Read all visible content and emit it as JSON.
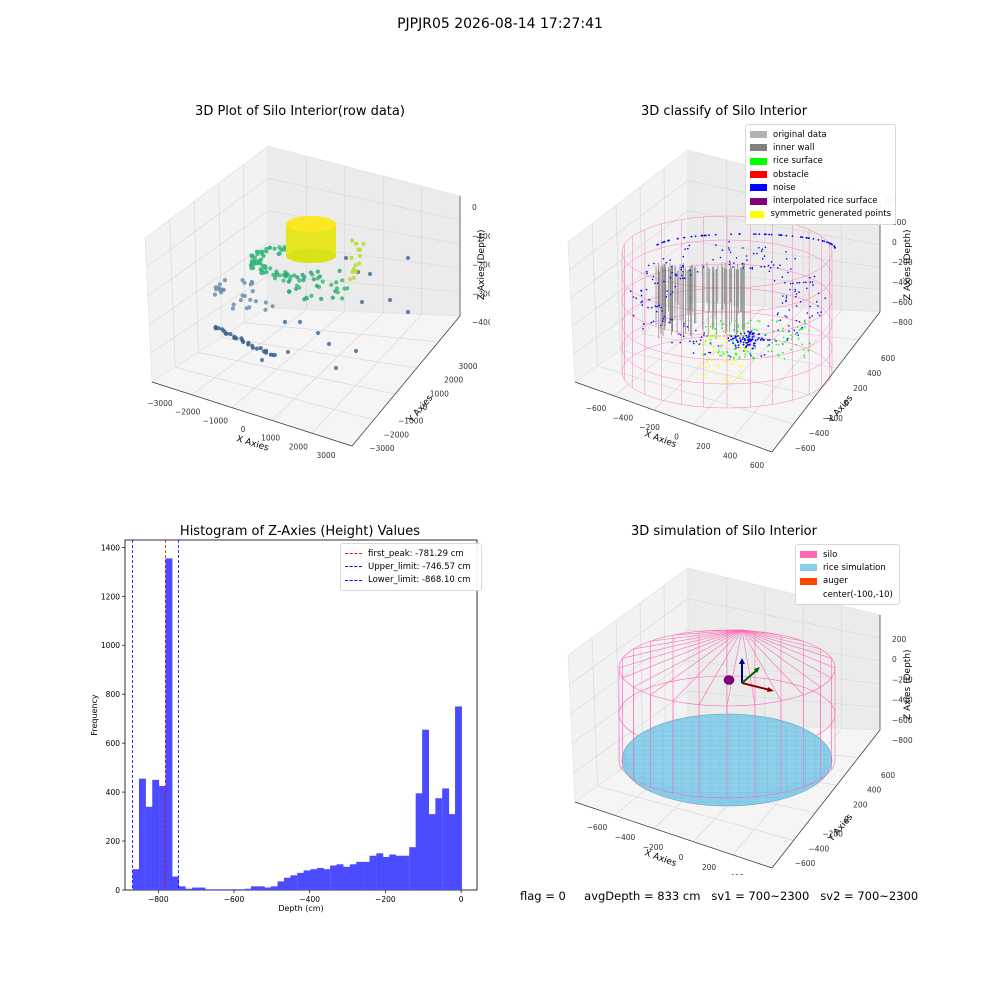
{
  "suptitle": "PJPJR05 2026-08-14 17:27:41",
  "footer": {
    "flag": "flag = 0",
    "avg_depth": "avgDepth = 833 cm",
    "sv1": "sv1 = 700~2300",
    "sv2": "sv2 = 700~2300"
  },
  "panels": {
    "raw": {
      "title": "3D Plot of Silo Interior(row data)",
      "xlabel": "X Axies",
      "ylabel": "Y Axies",
      "zlabel": "Z Axies (Depth)",
      "xticks": [
        "−3000",
        "−2000",
        "−1000",
        "0",
        "1000",
        "2000",
        "3000"
      ],
      "yticks": [
        "3000",
        "2000",
        "1000",
        "0",
        "−1000",
        "−2000",
        "−3000"
      ],
      "zticks": [
        "0",
        "−1000",
        "−2000",
        "−3000",
        "−4000"
      ]
    },
    "classify": {
      "title": "3D classify of Silo Interior",
      "xlabel": "X Axies",
      "ylabel": "Y Axies",
      "zlabel": "Z Axies (Depth)",
      "xticks": [
        "−600",
        "−400",
        "−200",
        "0",
        "200",
        "400",
        "600"
      ],
      "yticks": [
        "600",
        "400",
        "200",
        "0",
        "−200",
        "−400",
        "−600"
      ],
      "zticks": [
        "200",
        "0",
        "−200",
        "−400",
        "−600",
        "−800"
      ],
      "ztick_partial": "00",
      "legend": [
        {
          "label": "original data",
          "color": "#b2b2b2"
        },
        {
          "label": "inner wall",
          "color": "#808080"
        },
        {
          "label": "rice surface",
          "color": "#00ff00"
        },
        {
          "label": "obstacle",
          "color": "#ff0000"
        },
        {
          "label": "noise",
          "color": "#0000ff"
        },
        {
          "label": "interpolated rice surface",
          "color": "#800080"
        },
        {
          "label": "symmetric generated points",
          "color": "#ffff00"
        }
      ]
    },
    "simulation": {
      "title": "3D simulation of Silo Interior",
      "xlabel": "X Axies",
      "ylabel": "Y Axies",
      "zlabel": "Z Axies (Depth)",
      "xticks": [
        "−600",
        "−400",
        "−200",
        "0",
        "200",
        "400"
      ],
      "yticks": [
        "600",
        "400",
        "200",
        "0",
        "−200",
        "−400",
        "−600"
      ],
      "zticks": [
        "200",
        "0",
        "−200",
        "−400",
        "−600",
        "−800"
      ],
      "legend": [
        {
          "label": "silo",
          "color": "#ff69b4"
        },
        {
          "label": "rice simulation",
          "color": "#87ceeb"
        },
        {
          "label": "auger",
          "color": "#ff4500"
        },
        {
          "label": "center(-100,-10)",
          "color": ""
        }
      ]
    }
  },
  "chart_data": [
    {
      "type": "bar",
      "title": "Histogram of Z-Axies (Height) Values",
      "xlabel": "Depth (cm)",
      "ylabel": "Frequency",
      "xlim": [
        -888,
        42
      ],
      "ylim": [
        0,
        1430
      ],
      "bin_width": 17.4,
      "bar_color": "#4b4bff",
      "xticks": [
        -800,
        -600,
        -400,
        -200,
        0
      ],
      "xtick_labels": [
        "−800",
        "−600",
        "−400",
        "−200",
        "0"
      ],
      "yticks": [
        0,
        200,
        400,
        600,
        800,
        1000,
        1200,
        1400
      ],
      "bins_start": [
        -868,
        -851,
        -833,
        -816,
        -798,
        -781,
        -764,
        -746,
        -729,
        -711,
        -694,
        -677,
        -659,
        -642,
        -624,
        -607,
        -590,
        -572,
        -555,
        -537,
        -520,
        -503,
        -485,
        -468,
        -451,
        -433,
        -416,
        -398,
        -381,
        -364,
        -346,
        -329,
        -311,
        -294,
        -277,
        -259,
        -242,
        -224,
        -207,
        -190,
        -172,
        -155,
        -137,
        -120,
        -103,
        -85,
        -68,
        -50,
        -33,
        -16
      ],
      "values": [
        85,
        455,
        340,
        450,
        425,
        1355,
        55,
        15,
        5,
        10,
        10,
        3,
        3,
        3,
        3,
        3,
        3,
        5,
        15,
        15,
        10,
        15,
        35,
        50,
        60,
        70,
        80,
        85,
        90,
        85,
        100,
        105,
        95,
        105,
        115,
        115,
        140,
        150,
        135,
        145,
        140,
        140,
        175,
        395,
        655,
        310,
        375,
        415,
        310,
        750
      ],
      "lines": [
        {
          "name": "first_peak: -781.29 cm",
          "x": -781.29,
          "color": "#ff0000"
        },
        {
          "name": "Upper_limit: -746.57 cm",
          "x": -746.57,
          "color": "#0000ff"
        },
        {
          "name": "Lower_limit: -868.10 cm",
          "x": -868.1,
          "color": "#0000ff"
        }
      ],
      "legend_position": "top-right"
    }
  ]
}
